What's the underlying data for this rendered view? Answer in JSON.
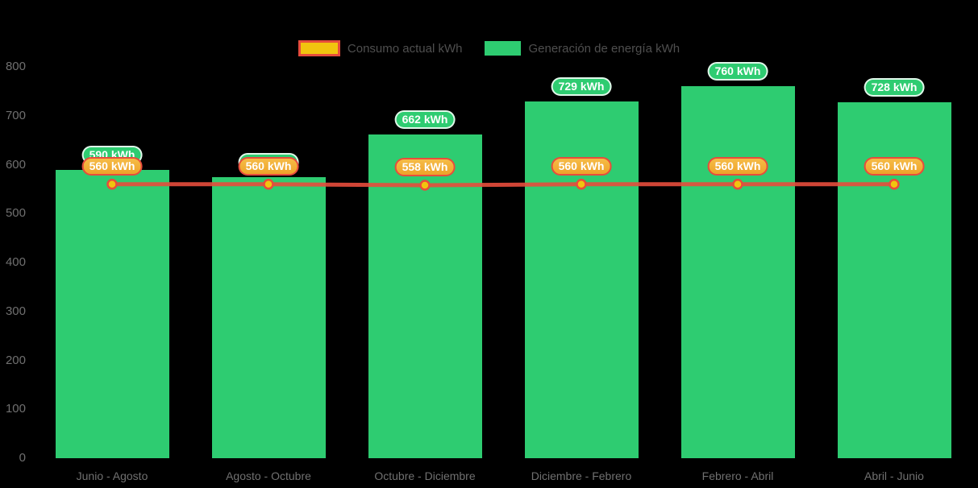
{
  "chart_data": {
    "type": "bar",
    "title": "",
    "categories": [
      "Junio - Agosto",
      "Agosto - Octubre",
      "Octubre - Diciembre",
      "Diciembre - Febrero",
      "Febrero - Abril",
      "Abril - Junio"
    ],
    "series": [
      {
        "name": "Consumo actual kWh",
        "type": "line",
        "values": [
          560,
          560,
          558,
          560,
          560,
          560
        ]
      },
      {
        "name": "Generación de energía kWh",
        "type": "bar",
        "values": [
          590,
          574,
          662,
          729,
          760,
          728
        ]
      }
    ],
    "xlabel": "",
    "ylabel": "",
    "ylim": [
      0,
      800
    ],
    "yticks": [
      0,
      100,
      200,
      300,
      400,
      500,
      600,
      700,
      800
    ],
    "label_suffix": " kWh",
    "legend_position": "top-center",
    "grid": false
  },
  "colors": {
    "background": "#000000",
    "bar": "#2ecc71",
    "line": "#e74c3c",
    "marker_fill": "#f1c40f",
    "bar_label_bg": "#2ecc71",
    "line_label_bg_top": "#f6bc47",
    "line_label_bg_bottom": "#eea32a",
    "line_label_border": "#e74c3c",
    "consumo_swatch_fill": "#f1c40f",
    "consumo_swatch_border": "#e74c3c",
    "label_text": "#ffffff",
    "axis_text": "#707070",
    "legend_text": "#4f4f4f"
  }
}
